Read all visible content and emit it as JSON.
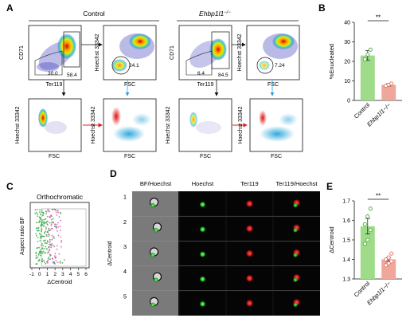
{
  "panels": {
    "A": {
      "label": "A",
      "control_title": "Control",
      "ko_title": "Ehbp1l1",
      "ko_sup": "−/−",
      "plots": {
        "c1": {
          "x": "Ter119",
          "y": "CD71",
          "g1": "30.0",
          "g2": "58.4"
        },
        "c2": {
          "x": "FSC",
          "y": "Hoechst 33342",
          "g1": "24.1"
        },
        "c3": {
          "x": "FSC",
          "y": "Hoechst 33342"
        },
        "c4": {
          "x": "FSC",
          "y": "Hoechst 33342"
        },
        "k1": {
          "x": "Ter119",
          "y": "CD71",
          "g1": "6.4",
          "g2": "84.5"
        },
        "k2": {
          "x": "FSC",
          "y": "Hoechst 33342",
          "g1": "7.24"
        },
        "k3": {
          "x": "FSC",
          "y": "Hoechst 33342"
        },
        "k4": {
          "x": "FSC",
          "y": "Hoechst 33342"
        }
      }
    },
    "B": {
      "label": "B",
      "sig": "**"
    },
    "C": {
      "label": "C",
      "title": "Orthochromatic",
      "xlabel": "ΔCentroid",
      "ylabel": "Aspect ratio BF",
      "xticks": [
        "-1",
        "0",
        "1",
        "2",
        "3",
        "4",
        "5",
        "6"
      ]
    },
    "D": {
      "label": "D",
      "cols": [
        "BF/Hoechst",
        "Hoechst",
        "Ter119",
        "Ter119/Hoechst"
      ],
      "rows": [
        "1",
        "2",
        "3",
        "4",
        "5"
      ],
      "ylabel": "ΔCentroid"
    },
    "E": {
      "label": "E",
      "sig": "**"
    }
  },
  "chart_data": [
    {
      "type": "bar",
      "panel": "B",
      "categories": [
        "Control",
        "Ehbp1l1−/−"
      ],
      "values": [
        23,
        8
      ],
      "points": [
        [
          21,
          23.5,
          26
        ],
        [
          7.5,
          8,
          8.6
        ]
      ],
      "errors": [
        2.5,
        0.6
      ],
      "colors": [
        "#9fdc8a",
        "#f0a79b"
      ],
      "point_colors": [
        "#4aa93a",
        "#e07060"
      ],
      "ylabel": "%Enucleated",
      "ylim": [
        0,
        40
      ],
      "yticks": [
        0,
        10,
        20,
        30,
        40
      ]
    },
    {
      "type": "bar",
      "panel": "E",
      "categories": [
        "Control",
        "Ehbp1l1−/−"
      ],
      "values": [
        1.57,
        1.4
      ],
      "points": [
        [
          1.48,
          1.5,
          1.55,
          1.58,
          1.62,
          1.66
        ],
        [
          1.37,
          1.38,
          1.39,
          1.4,
          1.41,
          1.43
        ]
      ],
      "errors": [
        0.04,
        0.01
      ],
      "colors": [
        "#9fdc8a",
        "#f0a79b"
      ],
      "point_colors": [
        "#4aa93a",
        "#e07060"
      ],
      "ylabel": "ΔCentroid",
      "ylim": [
        1.3,
        1.7
      ],
      "yticks": [
        "1.3",
        "1.4",
        "1.5",
        "1.6",
        "1.7"
      ]
    }
  ]
}
